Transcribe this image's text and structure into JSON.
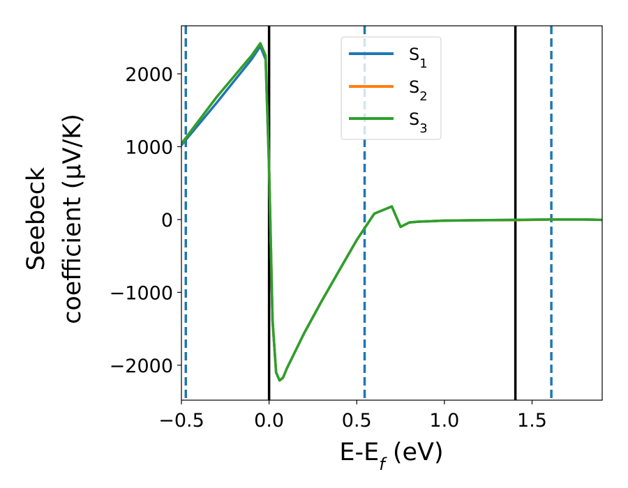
{
  "chart_data": {
    "type": "line",
    "xlabel": "E-E",
    "xlabel_sub": "f",
    "xlabel_unit": " (eV)",
    "ylabel_line1": "Seebeck",
    "ylabel_line2": "coefficient  (μV/K)",
    "xlim": [
      -0.5,
      1.9
    ],
    "ylim": [
      -2480,
      2660
    ],
    "x_ticks": [
      -0.5,
      0.0,
      0.5,
      1.0,
      1.5
    ],
    "x_tick_labels": [
      "−0.5",
      "0.0",
      "0.5",
      "1.0",
      "1.5"
    ],
    "y_ticks": [
      -2000,
      -1000,
      0,
      1000,
      2000
    ],
    "y_tick_labels": [
      "−2000",
      "−1000",
      "0",
      "1000",
      "2000"
    ],
    "grid": false,
    "legend_position": "top-center",
    "vertical_lines": [
      {
        "x": -0.475,
        "style": "dashed",
        "color": "#1f77b4"
      },
      {
        "x": 0.0,
        "style": "solid",
        "color": "#000000"
      },
      {
        "x": 0.545,
        "style": "dashed",
        "color": "#1f77b4"
      },
      {
        "x": 1.405,
        "style": "solid",
        "color": "#000000"
      },
      {
        "x": 1.61,
        "style": "dashed",
        "color": "#1f77b4"
      }
    ],
    "series": [
      {
        "name": "S",
        "name_sub": "1",
        "color": "#1f77b4",
        "x": [
          -0.5,
          -0.3,
          -0.1,
          -0.05,
          -0.02,
          0.0,
          0.02,
          0.04,
          0.06,
          0.08,
          0.1,
          0.2,
          0.3,
          0.4,
          0.5,
          0.6,
          0.7,
          0.75,
          0.8,
          0.85,
          0.9,
          1.0,
          1.2,
          1.4,
          1.6,
          1.8,
          1.9
        ],
        "y": [
          1020,
          1600,
          2200,
          2380,
          2200,
          700,
          -1400,
          -2100,
          -2210,
          -2170,
          -2050,
          -1560,
          -1120,
          -700,
          -280,
          80,
          180,
          -100,
          -40,
          -30,
          -25,
          -15,
          -10,
          -5,
          0,
          0,
          -5
        ]
      },
      {
        "name": "S",
        "name_sub": "2",
        "color": "#ff7f0e",
        "x": [
          -0.5,
          -0.3,
          -0.1,
          -0.05,
          -0.02,
          0.0,
          0.02,
          0.04,
          0.06,
          0.08,
          0.1,
          0.2,
          0.3,
          0.4,
          0.5,
          0.6,
          0.7,
          0.75,
          0.8,
          0.85,
          0.9,
          1.0,
          1.2,
          1.4,
          1.6,
          1.8,
          1.9
        ],
        "y": [
          1040,
          1680,
          2250,
          2420,
          2250,
          750,
          -1380,
          -2100,
          -2210,
          -2170,
          -2050,
          -1560,
          -1120,
          -700,
          -280,
          80,
          180,
          -100,
          -40,
          -30,
          -25,
          -15,
          -10,
          -10,
          0,
          0,
          -5
        ]
      },
      {
        "name": "S",
        "name_sub": "3",
        "color": "#2ca02c",
        "x": [
          -0.5,
          -0.3,
          -0.1,
          -0.05,
          -0.02,
          0.0,
          0.02,
          0.04,
          0.06,
          0.08,
          0.1,
          0.2,
          0.3,
          0.4,
          0.5,
          0.6,
          0.7,
          0.75,
          0.8,
          0.85,
          0.9,
          1.0,
          1.2,
          1.4,
          1.6,
          1.8,
          1.9
        ],
        "y": [
          1040,
          1680,
          2250,
          2420,
          2250,
          750,
          -1380,
          -2100,
          -2210,
          -2170,
          -2050,
          -1560,
          -1120,
          -700,
          -280,
          80,
          180,
          -100,
          -40,
          -30,
          -25,
          -15,
          -10,
          -5,
          0,
          0,
          -5
        ]
      }
    ]
  }
}
